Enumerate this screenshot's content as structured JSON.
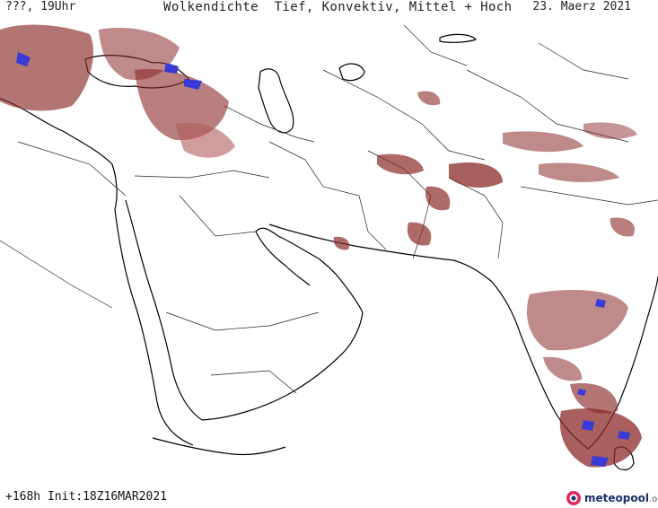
{
  "header": {
    "time_label": "???, 19Uhr",
    "title": "Wolkendichte  Tief, Konvektiv, Mittel + Hoch",
    "date": "23. Maerz 2021"
  },
  "footer": {
    "init": "+168h Init:18Z16MAR2021",
    "brand_main": "meteopool",
    "brand_suffix": ".org",
    "brand_icon": "meteopool-logo-icon"
  },
  "colors": {
    "coast": "#000000",
    "border": "#222222",
    "cloud": "#8b2a2a",
    "cloud_light": "#c48080",
    "cloud_dense": "#3a3ad6",
    "logo_red": "#e0245e",
    "logo_blue": "#1a2f6b"
  }
}
